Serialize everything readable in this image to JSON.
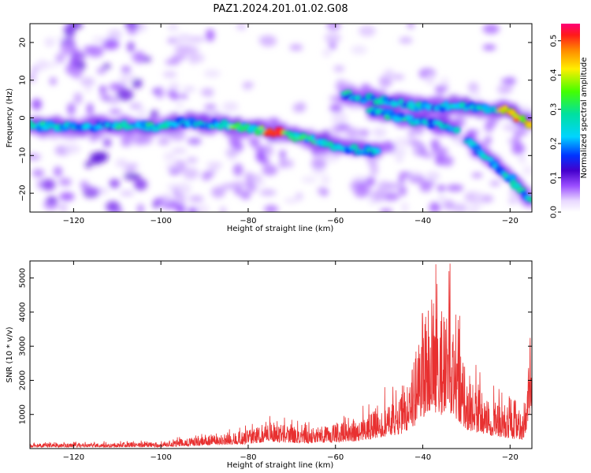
{
  "title": "PAZ1.2024.201.01.02.G08",
  "chart_data": [
    {
      "type": "heatmap",
      "xlabel": "Height of straight line (km)",
      "ylabel": "Frequency (Hz)",
      "xlim": [
        -130,
        -15
      ],
      "ylim": [
        -25,
        25
      ],
      "xticks": [
        -120,
        -100,
        -80,
        -60,
        -40,
        -20
      ],
      "yticks": [
        -20,
        -10,
        0,
        10,
        20
      ],
      "colorbar": {
        "label": "Normalized spectral amplitude",
        "range": [
          0.0,
          0.55
        ],
        "ticks": [
          0.0,
          0.1,
          0.2,
          0.3,
          0.4,
          0.5
        ]
      },
      "ridges": [
        {
          "x": [
            -130,
            -120,
            -110,
            -100,
            -95,
            -85,
            -75,
            -65,
            -55,
            -50
          ],
          "y": [
            -2,
            -2.5,
            -2,
            -2.5,
            -1,
            -2,
            -3.5,
            -6,
            -8.5,
            -9
          ]
        },
        {
          "x": [
            -58,
            -50,
            -40,
            -30,
            -20,
            -15
          ],
          "y": [
            6,
            4.5,
            3,
            3,
            2,
            -2
          ]
        },
        {
          "x": [
            -52,
            -45,
            -38,
            -32
          ],
          "y": [
            2,
            0,
            -1.5,
            -3
          ]
        },
        {
          "x": [
            -30,
            -25,
            -20,
            -17,
            -15
          ],
          "y": [
            -6,
            -11,
            -16,
            -20,
            -22
          ]
        }
      ],
      "peak": {
        "x": -73,
        "y": -3,
        "value": 0.55
      }
    },
    {
      "type": "line",
      "xlabel": "Height of straight line (km)",
      "ylabel": "SNR (10 * v/v)",
      "xlim": [
        -130,
        -15
      ],
      "ylim": [
        0,
        5500
      ],
      "xticks": [
        -120,
        -100,
        -80,
        -60,
        -40,
        -20
      ],
      "yticks": [
        1000,
        2000,
        3000,
        4000,
        5000
      ],
      "color": "#e83030",
      "envelope": {
        "x": [
          -130,
          -110,
          -100,
          -95,
          -90,
          -85,
          -80,
          -75,
          -70,
          -65,
          -60,
          -55,
          -50,
          -45,
          -42,
          -40,
          -38,
          -36,
          -34,
          -32,
          -30,
          -25,
          -20,
          -17,
          -16,
          -15
        ],
        "y": [
          150,
          170,
          190,
          280,
          350,
          450,
          550,
          800,
          650,
          600,
          750,
          850,
          1300,
          1700,
          2600,
          3600,
          4600,
          3800,
          4400,
          3300,
          2200,
          1500,
          1200,
          1000,
          2600,
          2800
        ]
      },
      "peaks": [
        {
          "x": -37,
          "y": 5400
        },
        {
          "x": -34,
          "y": 5200
        }
      ]
    }
  ]
}
